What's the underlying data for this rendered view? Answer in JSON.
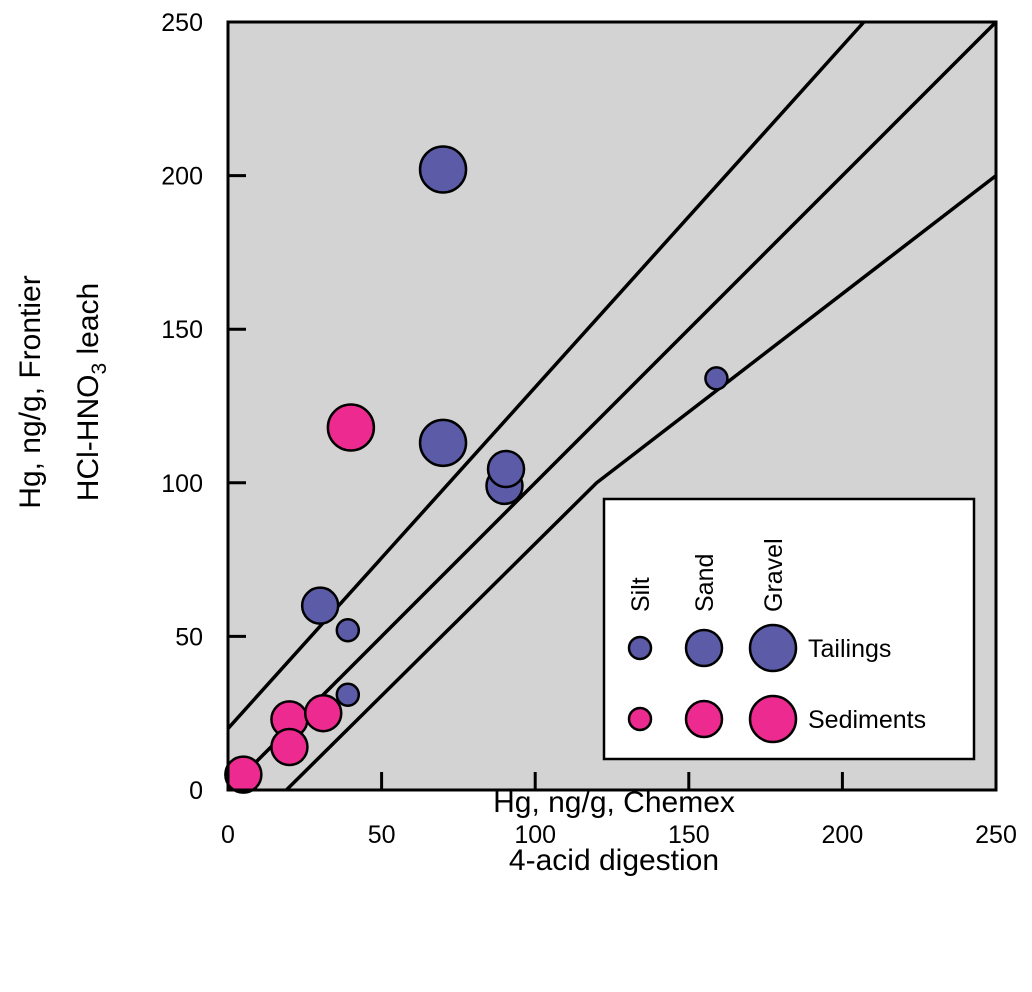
{
  "chart_data": {
    "type": "scatter",
    "xlabel_lines": [
      "Hg, ng/g, Chemex",
      "4-acid digestion"
    ],
    "ylabel_lines": [
      "Hg, ng/g, Frontier",
      "HCl-HNO",
      "3",
      " leach"
    ],
    "xlim": [
      0,
      250
    ],
    "ylim": [
      0,
      250
    ],
    "x_ticks": [
      0,
      50,
      100,
      150,
      200,
      250
    ],
    "y_ticks": [
      0,
      50,
      100,
      150,
      200,
      250
    ],
    "plot_background": "#d3d3d3",
    "reference_lines": [
      {
        "points": [
          [
            0,
            20
          ],
          [
            207,
            250
          ]
        ]
      },
      {
        "points": [
          [
            0,
            0
          ],
          [
            250,
            250
          ]
        ]
      },
      {
        "points": [
          [
            19,
            0
          ],
          [
            120,
            100
          ],
          [
            250,
            200
          ]
        ]
      }
    ],
    "series": [
      {
        "name": "Tailings",
        "color": "#5b5ba8",
        "points": [
          {
            "x": 70,
            "y": 202,
            "size": "Gravel"
          },
          {
            "x": 70,
            "y": 113,
            "size": "Gravel"
          },
          {
            "x": 90,
            "y": 99,
            "size": "Sand"
          },
          {
            "x": 90.5,
            "y": 104.5,
            "size": "Sand"
          },
          {
            "x": 30,
            "y": 60,
            "size": "Sand"
          },
          {
            "x": 39,
            "y": 52,
            "size": "Silt"
          },
          {
            "x": 39,
            "y": 31,
            "size": "Silt"
          },
          {
            "x": 159,
            "y": 134,
            "size": "Silt"
          }
        ]
      },
      {
        "name": "Sediments",
        "color": "#ec2a8f",
        "points": [
          {
            "x": 40,
            "y": 118,
            "size": "Gravel"
          },
          {
            "x": 20,
            "y": 23,
            "size": "Sand"
          },
          {
            "x": 20,
            "y": 14,
            "size": "Sand"
          },
          {
            "x": 31,
            "y": 25,
            "size": "Sand"
          },
          {
            "x": 5,
            "y": 5,
            "size": "Sand"
          }
        ]
      }
    ],
    "legend": {
      "placement": "bottom-right",
      "size_classes": [
        "Silt",
        "Sand",
        "Gravel"
      ],
      "groups": [
        "Tailings",
        "Sediments"
      ]
    }
  }
}
